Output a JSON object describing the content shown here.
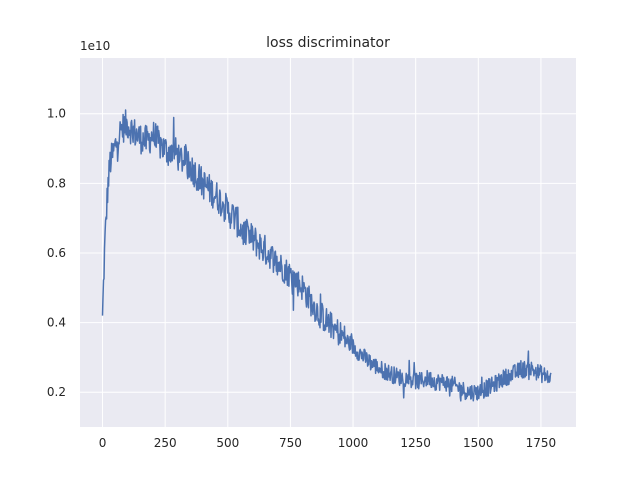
{
  "chart_data": {
    "type": "line",
    "title": "loss discriminator",
    "xlabel": "",
    "ylabel": "",
    "y_offset_label": "1e10",
    "xlim": [
      -90,
      1890
    ],
    "ylim": [
      0.1,
      1.16
    ],
    "grid": true,
    "background": "#eaeaf2",
    "line_color": "#4c72b0",
    "x_ticks": [
      0,
      250,
      500,
      750,
      1000,
      1250,
      1500,
      1750
    ],
    "x_tick_labels": [
      "0",
      "250",
      "500",
      "750",
      "1000",
      "1250",
      "1500",
      "1750"
    ],
    "y_ticks": [
      0.2,
      0.4,
      0.6,
      0.8,
      1.0
    ],
    "y_tick_labels": [
      "0.2",
      "0.4",
      "0.6",
      "0.8",
      "1.0"
    ],
    "series": [
      {
        "x": [
          0,
          10,
          20,
          30,
          40,
          60,
          80,
          100,
          120,
          150,
          180,
          200,
          230,
          260,
          280,
          300,
          330,
          360,
          400,
          430,
          460,
          500,
          530,
          560,
          600,
          630,
          660,
          700,
          730,
          760,
          800,
          830,
          860,
          900,
          930,
          960,
          1000,
          1030,
          1060,
          1100,
          1130,
          1160,
          1200,
          1230,
          1260,
          1300,
          1330,
          1360,
          1400,
          1430,
          1460,
          1500,
          1530,
          1560,
          1600,
          1630,
          1660,
          1700,
          1730,
          1760,
          1790
        ],
        "y": [
          0.42,
          0.64,
          0.78,
          0.86,
          0.88,
          0.93,
          0.96,
          0.97,
          0.95,
          0.93,
          0.92,
          0.94,
          0.91,
          0.89,
          0.9,
          0.88,
          0.86,
          0.84,
          0.8,
          0.78,
          0.76,
          0.72,
          0.7,
          0.66,
          0.64,
          0.62,
          0.6,
          0.57,
          0.55,
          0.53,
          0.5,
          0.46,
          0.43,
          0.4,
          0.38,
          0.36,
          0.33,
          0.31,
          0.29,
          0.27,
          0.26,
          0.25,
          0.24,
          0.24,
          0.23,
          0.24,
          0.23,
          0.23,
          0.22,
          0.21,
          0.2,
          0.2,
          0.21,
          0.22,
          0.24,
          0.25,
          0.26,
          0.27,
          0.26,
          0.25,
          0.24
        ]
      }
    ]
  }
}
